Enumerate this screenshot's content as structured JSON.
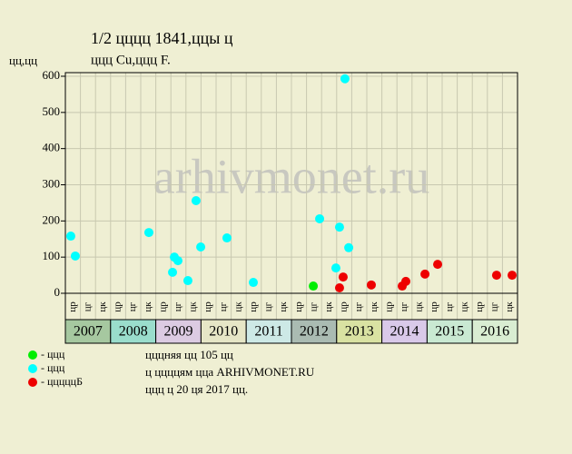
{
  "chart_data": {
    "type": "scatter",
    "title": "1/2 цццц 1841,ццы ц",
    "subtitle": "ццц Cu,ццц F.",
    "y_label": "цц,цц",
    "watermark": "arhivmonet.ru",
    "years": [
      {
        "label": "2007",
        "color": "#a6c8a0"
      },
      {
        "label": "2008",
        "color": "#9addcc"
      },
      {
        "label": "2009",
        "color": "#dccbe2"
      },
      {
        "label": "2010",
        "color": "#e6e6c6"
      },
      {
        "label": "2011",
        "color": "#cde9e6"
      },
      {
        "label": "2012",
        "color": "#aabbb2"
      },
      {
        "label": "2013",
        "color": "#d9e2a2"
      },
      {
        "label": "2014",
        "color": "#d9c9e9"
      },
      {
        "label": "2015",
        "color": "#c9e9d2"
      },
      {
        "label": "2016",
        "color": "#d9edd2"
      }
    ],
    "column_labels": [
      "цр",
      "цг",
      "цк"
    ],
    "xlim": [
      0,
      30
    ],
    "ylim": [
      0,
      610
    ],
    "yticks": [
      0,
      100,
      200,
      300,
      400,
      500,
      600
    ],
    "grid": true,
    "series": [
      {
        "name": "- ццц",
        "color": "#00ee00",
        "x": [
          16.45
        ],
        "values": [
          20
        ]
      },
      {
        "name": "- ццц",
        "color": "#00ffff",
        "x": [
          0.36,
          0.66,
          5.54,
          7.23,
          7.47,
          7.11,
          8.13,
          8.67,
          8.98,
          10.72,
          12.47,
          16.87,
          17.95,
          18.19,
          18.55,
          18.8
        ],
        "values": [
          158,
          103,
          168,
          100,
          90,
          58,
          35,
          256,
          128,
          153,
          30,
          206,
          70,
          183,
          593,
          126
        ]
      },
      {
        "name": "- цццццБ",
        "color": "#ee0000",
        "x": [
          18.19,
          18.43,
          20.3,
          22.35,
          22.59,
          23.86,
          24.7,
          28.61,
          29.64
        ],
        "values": [
          15,
          45,
          23,
          20,
          33,
          53,
          80,
          50,
          50
        ]
      }
    ],
    "notes": [
      "цццняя цц 105 цц",
      "ц ццццям цца ARHIVMONET.RU",
      "ццц ц 20 ця 2017 цц."
    ]
  }
}
